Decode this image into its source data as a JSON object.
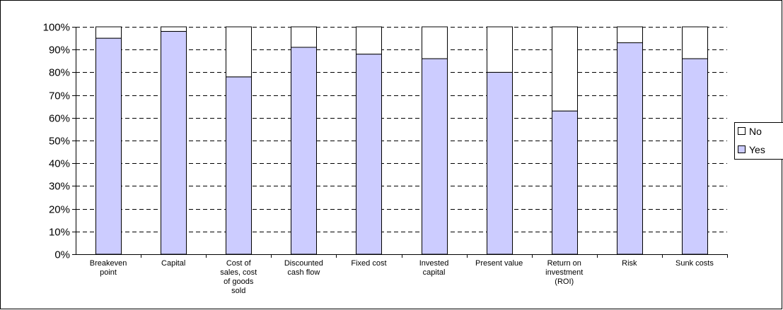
{
  "chart_data": {
    "type": "bar",
    "stacked": true,
    "percent_stacked": true,
    "categories": [
      [
        "Breakeven",
        "point"
      ],
      [
        "Capital"
      ],
      [
        "Cost of",
        "sales, cost",
        "of goods",
        "sold"
      ],
      [
        "Discounted",
        "cash flow"
      ],
      [
        "Fixed cost"
      ],
      [
        "Invested",
        "capital"
      ],
      [
        "Present value"
      ],
      [
        "Return on",
        "investment",
        "(ROI)"
      ],
      [
        "Risk"
      ],
      [
        "Sunk costs"
      ]
    ],
    "series": [
      {
        "name": "Yes",
        "color": "#ccccff",
        "values": [
          95,
          98,
          78,
          91,
          88,
          86,
          80,
          63,
          93,
          86
        ]
      },
      {
        "name": "No",
        "color": "#ffffff",
        "values": [
          5,
          2,
          22,
          9,
          12,
          14,
          20,
          37,
          7,
          14
        ]
      }
    ],
    "ylim": [
      0,
      100
    ],
    "yticks": [
      "0%",
      "10%",
      "20%",
      "30%",
      "40%",
      "50%",
      "60%",
      "70%",
      "80%",
      "90%",
      "100%"
    ],
    "grid": "dashed horizontal",
    "legend": {
      "placement": "right",
      "entries": [
        "No",
        "Yes"
      ]
    }
  }
}
